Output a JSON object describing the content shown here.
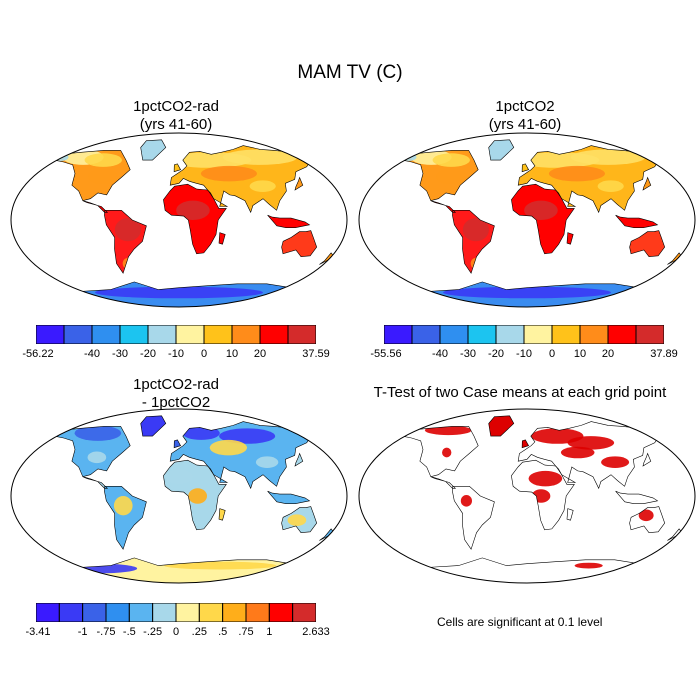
{
  "figure": {
    "title": "MAM TV (C)"
  },
  "panels": [
    {
      "title_line1": "1pctCO2-rad",
      "title_line2": "(yrs 41-60)",
      "colorbar": {
        "labels": [
          "-56.22",
          "-40",
          "-30",
          "-20",
          "-10",
          "0",
          "10",
          "20",
          "37.59"
        ],
        "colors": [
          "#3a1aff",
          "#3a62e8",
          "#2f8ff0",
          "#1cc4f0",
          "#a8d8ea",
          "#fff3a0",
          "#ffc21a",
          "#ff8c1a",
          "#ff0000",
          "#d42b2b"
        ]
      }
    },
    {
      "title_line1": "1pctCO2",
      "title_line2": "(yrs 41-60)",
      "colorbar": {
        "labels": [
          "-55.56",
          "-40",
          "-30",
          "-20",
          "-10",
          "0",
          "10",
          "20",
          "37.89"
        ],
        "colors": [
          "#3a1aff",
          "#3a62e8",
          "#2f8ff0",
          "#1cc4f0",
          "#a8d8ea",
          "#fff3a0",
          "#ffc21a",
          "#ff8c1a",
          "#ff0000",
          "#d42b2b"
        ]
      }
    },
    {
      "title_line1": "1pctCO2-rad",
      "title_line2": "- 1pctCO2",
      "colorbar": {
        "labels": [
          "-3.41",
          "-1",
          "-.75",
          "-.5",
          "-.25",
          "0",
          ".25",
          ".5",
          ".75",
          "1",
          "2.633"
        ],
        "colors": [
          "#3a1aff",
          "#3a3af5",
          "#3a62e8",
          "#2f8ff0",
          "#5ab4f0",
          "#a8d8ea",
          "#fff3a0",
          "#ffd84a",
          "#ffae1a",
          "#ff7a1a",
          "#ff0000",
          "#d42b2b"
        ]
      }
    },
    {
      "title_line1": "T-Test of two Case means at each grid point",
      "note": "Cells are significant at 0.1 level",
      "significant_color": "#dd0000"
    }
  ]
}
